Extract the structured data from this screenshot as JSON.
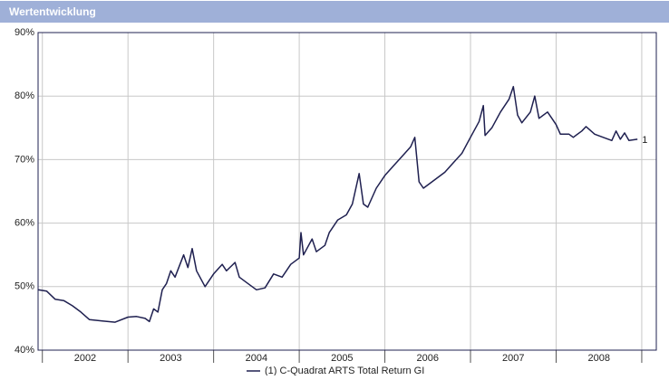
{
  "chart_data": {
    "type": "line",
    "title": "Wertentwicklung",
    "xlim": [
      2001.95,
      2009.17
    ],
    "xticks": [
      {
        "value": 2002.5,
        "label": "2002"
      },
      {
        "value": 2003.5,
        "label": "2003"
      },
      {
        "value": 2004.5,
        "label": "2004"
      },
      {
        "value": 2005.5,
        "label": "2005"
      },
      {
        "value": 2006.5,
        "label": "2006"
      },
      {
        "value": 2007.5,
        "label": "2007"
      },
      {
        "value": 2008.5,
        "label": "2008"
      }
    ],
    "x_gridlines": [
      2002,
      2003,
      2004,
      2005,
      2006,
      2007,
      2008,
      2009
    ],
    "ylim": [
      40,
      90
    ],
    "yticks": [
      {
        "value": 40,
        "label": "40%"
      },
      {
        "value": 50,
        "label": "50%"
      },
      {
        "value": 60,
        "label": "60%"
      },
      {
        "value": 70,
        "label": "70%"
      },
      {
        "value": 80,
        "label": "80%"
      },
      {
        "value": 90,
        "label": "90%"
      }
    ],
    "grid": true,
    "x": [
      2001.95,
      2002.05,
      2002.15,
      2002.25,
      2002.35,
      2002.45,
      2002.55,
      2002.7,
      2002.85,
      2003.0,
      2003.1,
      2003.2,
      2003.25,
      2003.3,
      2003.35,
      2003.4,
      2003.45,
      2003.5,
      2003.55,
      2003.65,
      2003.7,
      2003.75,
      2003.8,
      2003.9,
      2004.0,
      2004.1,
      2004.15,
      2004.25,
      2004.3,
      2004.4,
      2004.5,
      2004.6,
      2004.7,
      2004.8,
      2004.9,
      2005.0,
      2005.02,
      2005.05,
      2005.15,
      2005.2,
      2005.3,
      2005.35,
      2005.45,
      2005.55,
      2005.62,
      2005.7,
      2005.75,
      2005.8,
      2005.9,
      2006.0,
      2006.1,
      2006.2,
      2006.3,
      2006.35,
      2006.4,
      2006.45,
      2006.55,
      2006.7,
      2006.8,
      2006.9,
      2007.0,
      2007.1,
      2007.15,
      2007.17,
      2007.25,
      2007.35,
      2007.45,
      2007.5,
      2007.55,
      2007.6,
      2007.7,
      2007.75,
      2007.8,
      2007.9,
      2007.95,
      2008.0,
      2008.05,
      2008.15,
      2008.2,
      2008.3,
      2008.35,
      2008.45,
      2008.55,
      2008.65,
      2008.7,
      2008.75,
      2008.8,
      2008.85,
      2008.95
    ],
    "series": [
      {
        "name": "(1)  C-Quadrat ARTS Total Return GI",
        "end_label": "1",
        "color": "#1f2050",
        "values": [
          49.5,
          49.3,
          48,
          47.8,
          47,
          46,
          44.8,
          44.6,
          44.4,
          45.2,
          45.3,
          45,
          44.5,
          46.5,
          46,
          49.5,
          50.5,
          52.5,
          51.5,
          55,
          53,
          56,
          52.5,
          50,
          52,
          53.5,
          52.5,
          53.8,
          51.5,
          50.5,
          49.5,
          49.8,
          52,
          51.5,
          53.5,
          54.5,
          58.5,
          55,
          57.5,
          55.5,
          56.5,
          58.5,
          60.5,
          61.3,
          63,
          67.8,
          63,
          62.5,
          65.5,
          67.5,
          69,
          70.5,
          72,
          73.5,
          66.5,
          65.5,
          66.5,
          68,
          69.5,
          71,
          73.5,
          76,
          78.5,
          73.8,
          75,
          77.5,
          79.5,
          81.5,
          77,
          75.8,
          77.5,
          80,
          76.5,
          77.5,
          76.5,
          75.5,
          74,
          74,
          73.5,
          74.5,
          75.2,
          74,
          73.5,
          73,
          74.5,
          73.2,
          74.2,
          73,
          73.2
        ]
      }
    ]
  }
}
